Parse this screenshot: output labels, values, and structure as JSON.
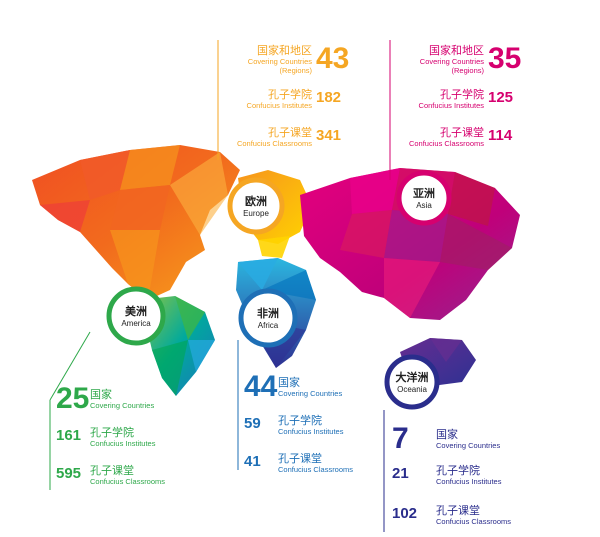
{
  "colors": {
    "europe": "#f5a623",
    "asia": "#d6006f",
    "america": "#2ea84a",
    "africa": "#1e6fb6",
    "oceania": "#2a2d8c"
  },
  "regions": {
    "europe": {
      "badge_cn": "欧洲",
      "badge_en": "Europe",
      "countries": {
        "value": "43",
        "label_cn": "国家和地区",
        "label_en": "Covering Countries",
        "label_en2": "(Regions)"
      },
      "institutes": {
        "value": "182",
        "label_cn": "孔子学院",
        "label_en": "Confucius Institutes"
      },
      "classrooms": {
        "value": "341",
        "label_cn": "孔子课堂",
        "label_en": "Confucius Classrooms"
      }
    },
    "asia": {
      "badge_cn": "亚洲",
      "badge_en": "Asia",
      "countries": {
        "value": "35",
        "label_cn": "国家和地区",
        "label_en": "Covering Countries",
        "label_en2": "(Regions)"
      },
      "institutes": {
        "value": "125",
        "label_cn": "孔子学院",
        "label_en": "Confucius Institutes"
      },
      "classrooms": {
        "value": "114",
        "label_cn": "孔子课堂",
        "label_en": "Confucius Classrooms"
      }
    },
    "america": {
      "badge_cn": "美洲",
      "badge_en": "America",
      "countries": {
        "value": "25",
        "label_cn": "国家",
        "label_en": "Covering Countries"
      },
      "institutes": {
        "value": "161",
        "label_cn": "孔子学院",
        "label_en": "Confucius Institutes"
      },
      "classrooms": {
        "value": "595",
        "label_cn": "孔子课堂",
        "label_en": "Confucius Classrooms"
      }
    },
    "africa": {
      "badge_cn": "非洲",
      "badge_en": "Africa",
      "countries": {
        "value": "44",
        "label_cn": "国家",
        "label_en": "Covering Countries"
      },
      "institutes": {
        "value": "59",
        "label_cn": "孔子学院",
        "label_en": "Confucius Institutes"
      },
      "classrooms": {
        "value": "41",
        "label_cn": "孔子课堂",
        "label_en": "Confucius Classrooms"
      }
    },
    "oceania": {
      "badge_cn": "大洋洲",
      "badge_en": "Oceania",
      "countries": {
        "value": "7",
        "label_cn": "国家",
        "label_en": "Covering Countries"
      },
      "institutes": {
        "value": "21",
        "label_cn": "孔子学院",
        "label_en": "Confucius Institutes"
      },
      "classrooms": {
        "value": "102",
        "label_cn": "孔子课堂",
        "label_en": "Confucius Classrooms"
      }
    }
  }
}
